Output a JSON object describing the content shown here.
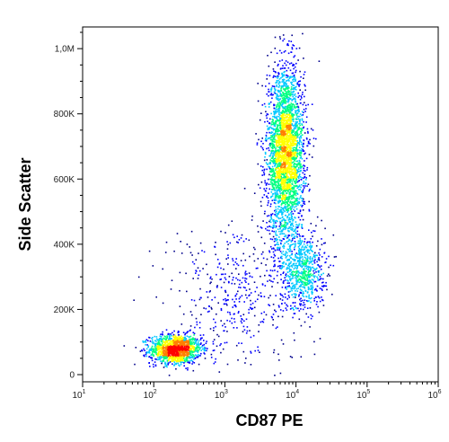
{
  "chart_data": {
    "type": "scatter",
    "title": "",
    "xlabel": "CD87 PE",
    "ylabel": "Side Scatter",
    "x_scale": "log",
    "xlim": [
      10,
      1000000
    ],
    "ylim": [
      0,
      1050000
    ],
    "x_ticks": [
      {
        "value": 10,
        "base": "10",
        "exp": "1"
      },
      {
        "value": 100,
        "base": "10",
        "exp": "2"
      },
      {
        "value": 1000,
        "base": "10",
        "exp": "3"
      },
      {
        "value": 10000,
        "base": "10",
        "exp": "4"
      },
      {
        "value": 100000,
        "base": "10",
        "exp": "5"
      },
      {
        "value": 1000000,
        "base": "10",
        "exp": "6"
      }
    ],
    "y_ticks": [
      {
        "value": 0,
        "label": "0"
      },
      {
        "value": 200000,
        "label": "200K"
      },
      {
        "value": 400000,
        "label": "400K"
      },
      {
        "value": 600000,
        "label": "600K"
      },
      {
        "value": 800000,
        "label": "800K"
      },
      {
        "value": 1000000,
        "label": "1,0M"
      }
    ],
    "grid": false,
    "colormap": [
      "#00008b",
      "#0000ff",
      "#00c8ff",
      "#00ff80",
      "#ffff00",
      "#ff8000",
      "#ff0000"
    ],
    "populations": [
      {
        "x_center": 200,
        "y_center": 80000,
        "x_spread_log": 0.18,
        "y_spread": 22000,
        "n": 1400
      },
      {
        "x_center": 7000,
        "y_center": 680000,
        "x_spread_log": 0.13,
        "y_spread": 130000,
        "n": 3200
      },
      {
        "x_center": 12000,
        "y_center": 320000,
        "x_spread_log": 0.16,
        "y_spread": 60000,
        "n": 700
      },
      {
        "x_center": 1500,
        "y_center": 250000,
        "x_spread_log": 0.5,
        "y_spread": 110000,
        "n": 450
      }
    ]
  }
}
